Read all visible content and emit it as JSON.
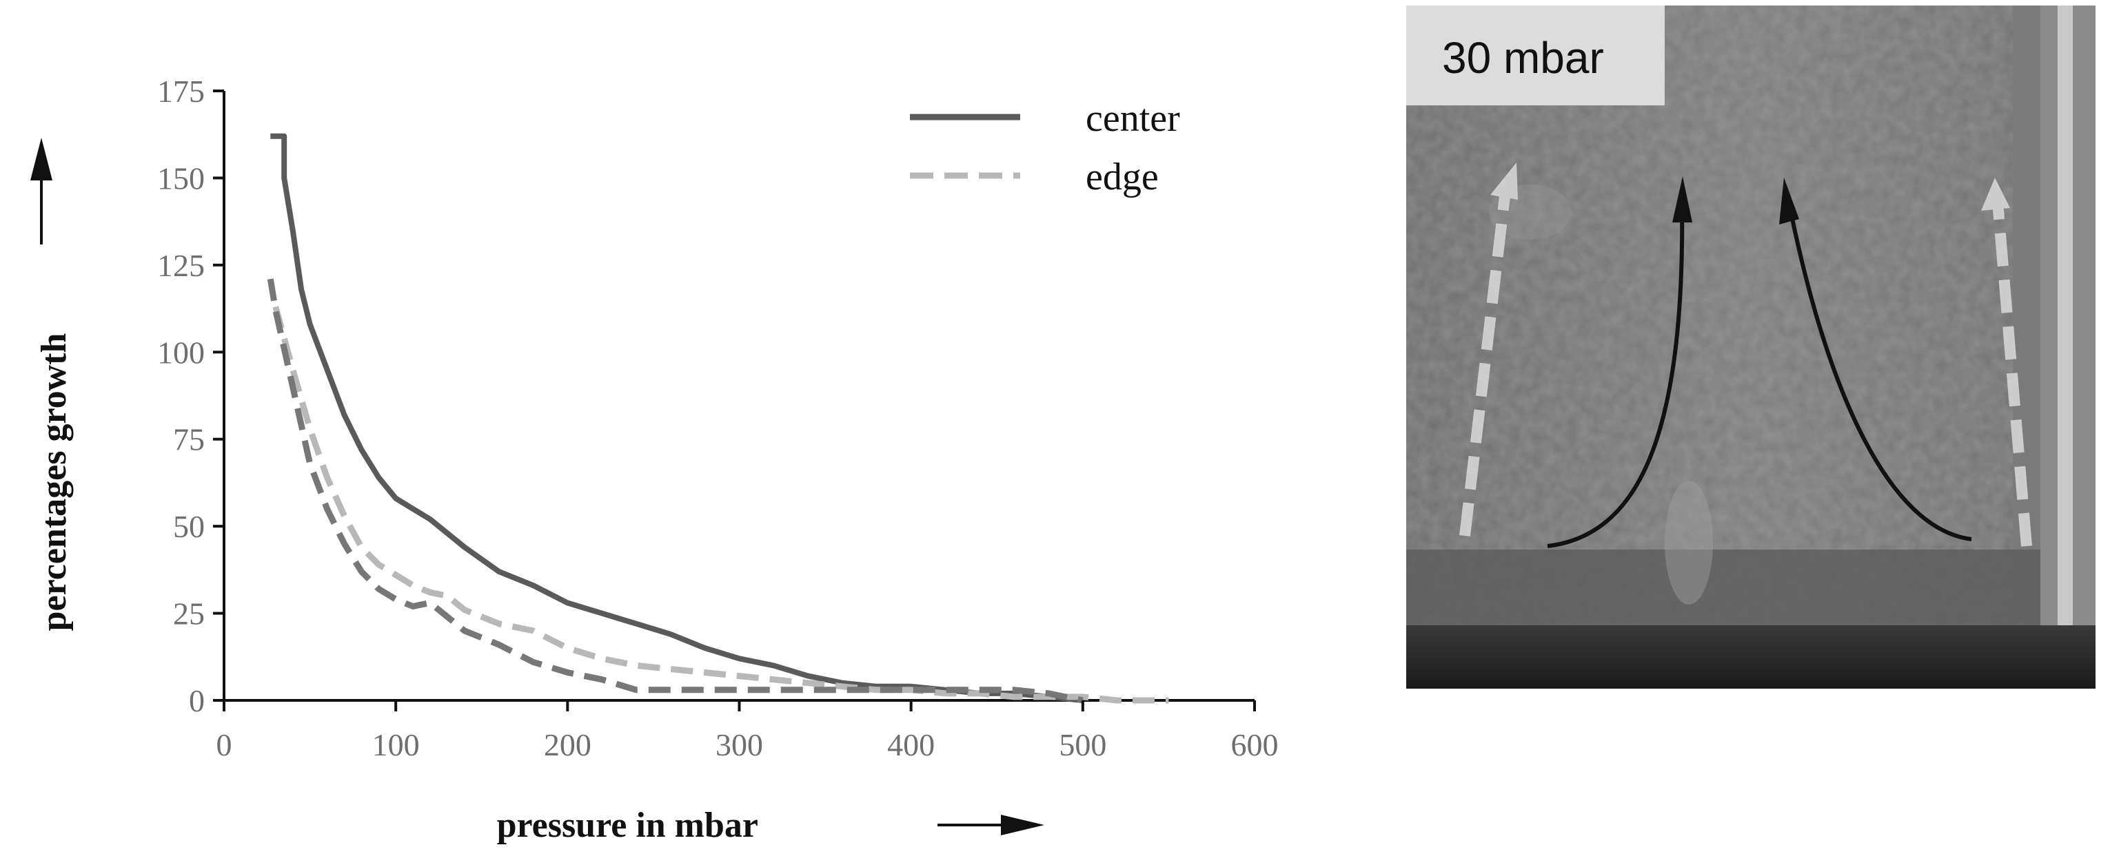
{
  "chart_data": {
    "type": "line",
    "title": "",
    "xlabel": "pressure in mbar",
    "ylabel": "percentages  growth",
    "xlim": [
      0,
      600
    ],
    "ylim": [
      0,
      175
    ],
    "xticks": [
      "0",
      "100",
      "200",
      "300",
      "400",
      "500",
      "600"
    ],
    "yticks": [
      "0",
      "25",
      "50",
      "75",
      "100",
      "125",
      "150",
      "175"
    ],
    "grid": false,
    "legend_position": "top-right",
    "series": [
      {
        "name": "center",
        "style": "solid",
        "color": "#5a5a5a",
        "x": [
          27,
          35,
          35,
          40,
          45,
          50,
          60,
          70,
          80,
          90,
          100,
          110,
          120,
          140,
          160,
          180,
          200,
          220,
          240,
          260,
          280,
          300,
          320,
          340,
          360,
          380,
          400,
          420,
          440,
          460,
          480,
          500
        ],
        "y": [
          162,
          162,
          150,
          135,
          118,
          108,
          95,
          82,
          72,
          64,
          58,
          55,
          52,
          44,
          37,
          33,
          28,
          25,
          22,
          19,
          15,
          12,
          10,
          7,
          5,
          4,
          4,
          3,
          2,
          2,
          1,
          0
        ]
      },
      {
        "name": "edge",
        "style": "dashed",
        "color": "#b8b8b8",
        "x": [
          30,
          40,
          50,
          60,
          70,
          80,
          90,
          100,
          110,
          120,
          130,
          140,
          160,
          180,
          200,
          220,
          240,
          260,
          280,
          300,
          320,
          340,
          360,
          380,
          400,
          420,
          440,
          460,
          480,
          500,
          520,
          550
        ],
        "y": [
          113,
          95,
          78,
          64,
          53,
          44,
          39,
          36,
          33,
          31,
          30,
          26,
          22,
          20,
          15,
          12,
          10,
          9,
          8,
          7,
          6,
          5,
          4,
          3,
          3,
          2,
          2,
          1,
          1,
          1,
          0,
          0
        ]
      },
      {
        "name": "",
        "style": "dashed",
        "color": "#777777",
        "x": [
          27,
          30,
          40,
          50,
          60,
          70,
          80,
          90,
          100,
          110,
          120,
          130,
          140,
          160,
          180,
          200,
          220,
          240,
          260,
          280,
          300,
          320,
          340,
          360,
          380,
          400,
          420,
          440,
          460,
          480,
          500
        ],
        "y": [
          121,
          112,
          90,
          68,
          55,
          45,
          37,
          32,
          29,
          27,
          28,
          24,
          20,
          16,
          11,
          8,
          6,
          3,
          3,
          3,
          3,
          3,
          3,
          3,
          3,
          3,
          3,
          3,
          3,
          2,
          0
        ]
      }
    ]
  },
  "photo": {
    "label": "30 mbar"
  },
  "colors": {
    "axis": "#111111",
    "tick_text": "#6e6e6e"
  }
}
